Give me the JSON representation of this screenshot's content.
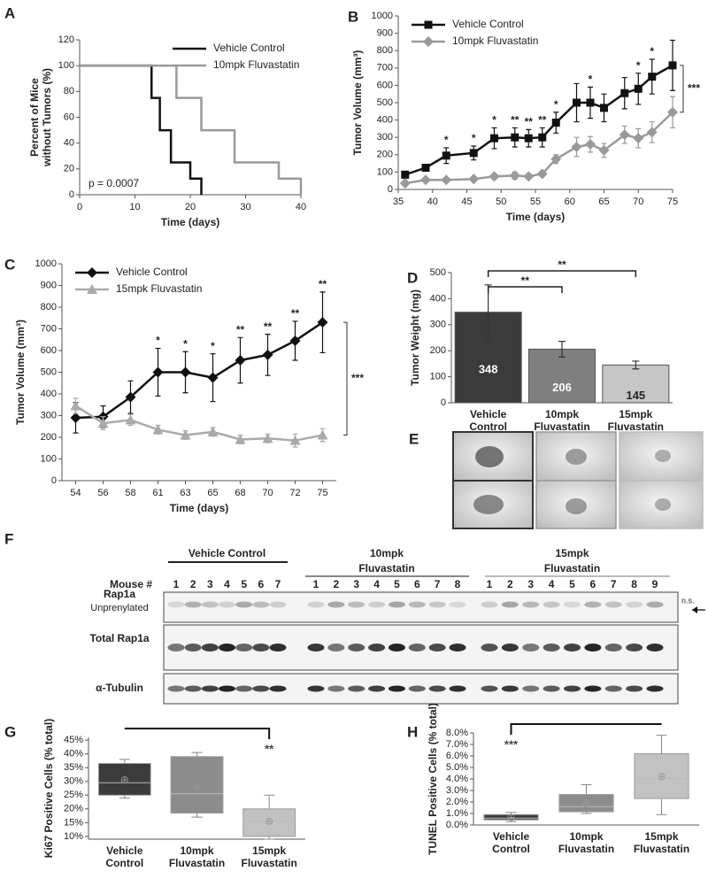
{
  "chart_data": [
    {
      "panel": "A",
      "type": "step",
      "xlabel": "Time (days)",
      "ylabel": [
        "Percent of Mice",
        "without Tumors (%)"
      ],
      "xlim": [
        0,
        40
      ],
      "xticks": [
        0,
        10,
        20,
        30,
        40
      ],
      "ylim": [
        0,
        120
      ],
      "yticks": [
        0,
        20,
        40,
        60,
        80,
        100,
        120
      ],
      "legend": "upper right",
      "annotation": "p = 0.0007",
      "series": [
        {
          "name": "Vehicle Control",
          "color": "#111111",
          "x": [
            0,
            13,
            14.5,
            16.5,
            20,
            22
          ],
          "values": [
            100,
            75,
            50,
            25,
            12.5,
            0
          ]
        },
        {
          "name": "10mpk Fluvastatin",
          "color": "#999999",
          "x": [
            0,
            17.5,
            22,
            28,
            36,
            40
          ],
          "values": [
            100,
            75,
            50,
            25,
            12.5,
            0
          ]
        }
      ]
    },
    {
      "panel": "B",
      "type": "line",
      "xlabel": "Time (days)",
      "ylabel": "Tumor Volume (mm³)",
      "x": [
        36,
        39,
        42,
        46,
        49,
        52,
        54,
        56,
        58,
        61,
        63,
        65,
        68,
        70,
        72,
        75
      ],
      "xlim": [
        35,
        75
      ],
      "xticks": [
        35,
        40,
        45,
        50,
        55,
        60,
        65,
        70,
        75
      ],
      "ylim": [
        0,
        1000
      ],
      "yticks": [
        0,
        100,
        200,
        300,
        400,
        500,
        600,
        700,
        800,
        900,
        1000
      ],
      "legend": "upper left",
      "series": [
        {
          "name": "Vehicle Control",
          "color": "#111111",
          "marker": "square",
          "values": [
            85,
            125,
            195,
            210,
            295,
            300,
            295,
            300,
            385,
            500,
            500,
            470,
            555,
            580,
            650,
            715
          ],
          "errors": [
            20,
            20,
            45,
            40,
            60,
            55,
            50,
            55,
            60,
            110,
            90,
            80,
            90,
            90,
            100,
            145
          ]
        },
        {
          "name": "10mpk Fluvastatin",
          "color": "#999999",
          "marker": "diamond",
          "values": [
            35,
            55,
            55,
            60,
            75,
            80,
            75,
            90,
            175,
            245,
            260,
            225,
            315,
            295,
            330,
            445
          ],
          "errors": [
            15,
            10,
            10,
            10,
            15,
            20,
            15,
            15,
            25,
            55,
            45,
            40,
            50,
            55,
            60,
            90
          ]
        }
      ],
      "significance": [
        null,
        null,
        "*",
        "*",
        "*",
        "**",
        "**",
        "**",
        "*",
        null,
        "*",
        null,
        null,
        "*",
        "*",
        null
      ],
      "bracket_label": "***"
    },
    {
      "panel": "C",
      "type": "line",
      "xlabel": "Time (days)",
      "ylabel": "Tumor Volume (mm³)",
      "categories": [
        "54",
        "56",
        "58",
        "61",
        "63",
        "65",
        "68",
        "70",
        "72",
        "75"
      ],
      "ylim": [
        0,
        1000
      ],
      "yticks": [
        0,
        100,
        200,
        300,
        400,
        500,
        600,
        700,
        800,
        900,
        1000
      ],
      "legend": "upper left",
      "series": [
        {
          "name": "Vehicle Control",
          "color": "#111111",
          "marker": "diamond",
          "values": [
            290,
            295,
            385,
            500,
            500,
            475,
            555,
            580,
            645,
            730
          ],
          "errors": [
            70,
            50,
            75,
            110,
            95,
            110,
            105,
            95,
            90,
            140
          ]
        },
        {
          "name": "15mpk Fluvastatin",
          "color": "#aaaaaa",
          "marker": "triangle",
          "values": [
            345,
            265,
            280,
            235,
            210,
            225,
            190,
            195,
            185,
            210
          ],
          "errors": [
            35,
            30,
            25,
            20,
            20,
            20,
            20,
            20,
            30,
            30
          ]
        }
      ],
      "significance": [
        null,
        null,
        null,
        "*",
        "*",
        "*",
        "**",
        "**",
        "**",
        "**"
      ],
      "bracket_label": "***"
    },
    {
      "panel": "D",
      "type": "bar",
      "ylabel": "Tumor Weight (mg)",
      "categories": [
        [
          "Vehicle",
          "Control"
        ],
        [
          "10mpk",
          "Fluvastatin"
        ],
        [
          "15mpk",
          "Fluvastatin"
        ]
      ],
      "values": [
        348,
        206,
        145
      ],
      "errors": [
        105,
        30,
        15
      ],
      "colors": [
        "#3b3b3b",
        "#7f7f7f",
        "#c6c6c6"
      ],
      "ylim": [
        0,
        500
      ],
      "yticks": [
        0,
        100,
        200,
        300,
        400,
        500
      ],
      "brackets": [
        {
          "groups": [
            0,
            1
          ],
          "label": "**"
        },
        {
          "groups": [
            0,
            2
          ],
          "label": "**"
        }
      ]
    },
    {
      "panel": "G",
      "type": "box",
      "ylabel": "Ki67 Positive Cells (% total)",
      "categories": [
        [
          "Vehicle",
          "Control"
        ],
        [
          "10mpk",
          "Fluvastatin"
        ],
        [
          "15mpk",
          "Fluvastatin"
        ]
      ],
      "boxes": [
        {
          "min": 24,
          "q1": 25,
          "median": 29.5,
          "q3": 36.5,
          "max": 38,
          "mean": 30.5
        },
        {
          "min": 17,
          "q1": 18.5,
          "median": 25.5,
          "q3": 39,
          "max": 40.5,
          "mean": 28
        },
        {
          "min": 9,
          "q1": 10,
          "median": 15.5,
          "q3": 20,
          "max": 25,
          "mean": 15.5
        }
      ],
      "colors": [
        "#3b3b3b",
        "#8c8c8c",
        "#c2c2c2"
      ],
      "ylim": [
        9,
        46
      ],
      "yticks": [
        {
          "value": 10,
          "label": "10%"
        },
        {
          "value": 15,
          "label": "15%"
        },
        {
          "value": 20,
          "label": "20%"
        },
        {
          "value": 25,
          "label": "25%"
        },
        {
          "value": 30,
          "label": "30%"
        },
        {
          "value": 35,
          "label": "35%"
        },
        {
          "value": 40,
          "label": "40%"
        },
        {
          "value": 45,
          "label": "45%"
        }
      ],
      "brackets": [
        {
          "groups": [
            0,
            2
          ],
          "label": "**"
        }
      ]
    },
    {
      "panel": "H",
      "type": "box",
      "ylabel": "TUNEL Positive Cells (% total)",
      "categories": [
        [
          "Vehicle",
          "Control"
        ],
        [
          "10mpk",
          "Fluvastatin"
        ],
        [
          "15mpk",
          "Fluvastatin"
        ]
      ],
      "boxes": [
        {
          "min": 0.3,
          "q1": 0.45,
          "median": 0.6,
          "q3": 0.9,
          "max": 1.1,
          "mean": 0.65
        },
        {
          "min": 1.0,
          "q1": 1.15,
          "median": 1.6,
          "q3": 2.65,
          "max": 3.5,
          "mean": 1.85
        },
        {
          "min": 0.9,
          "q1": 2.3,
          "median": 4.05,
          "q3": 6.2,
          "max": 7.8,
          "mean": 4.2
        }
      ],
      "colors": [
        "#3b3b3b",
        "#8c8c8c",
        "#c2c2c2"
      ],
      "ylim": [
        0,
        8
      ],
      "yticks": [
        {
          "value": 0,
          "label": "0.0%"
        },
        {
          "value": 1,
          "label": "1.0%"
        },
        {
          "value": 2,
          "label": "2.0%"
        },
        {
          "value": 3,
          "label": "3.0%"
        },
        {
          "value": 4,
          "label": "4.0%"
        },
        {
          "value": 5,
          "label": "5.0%"
        },
        {
          "value": 6,
          "label": "6.0%"
        },
        {
          "value": 7,
          "label": "7.0%"
        },
        {
          "value": 8,
          "label": "8.0%"
        }
      ],
      "brackets": [
        {
          "groups": [
            2,
            0
          ],
          "label": "***"
        }
      ]
    }
  ],
  "photos": {
    "panel": "E"
  },
  "blot": {
    "panel": "F",
    "mouse_label": "Mouse #",
    "ns": "n.s.",
    "groups": [
      {
        "name": [
          "Vehicle Control"
        ],
        "lanes": [
          1,
          2,
          3,
          4,
          5,
          6,
          7
        ]
      },
      {
        "name": [
          "10mpk",
          "Fluvastatin"
        ],
        "lanes": [
          1,
          2,
          3,
          4,
          5,
          6,
          7,
          8
        ]
      },
      {
        "name": [
          "15mpk",
          "Fluvastatin"
        ],
        "lanes": [
          1,
          2,
          3,
          4,
          5,
          6,
          7,
          8,
          9
        ]
      }
    ],
    "rows": [
      {
        "label": [
          "Rap1a",
          "Unprenylated"
        ]
      },
      {
        "label": [
          "Total Rap1a"
        ]
      },
      {
        "label": [
          "α-Tubulin"
        ]
      }
    ]
  }
}
